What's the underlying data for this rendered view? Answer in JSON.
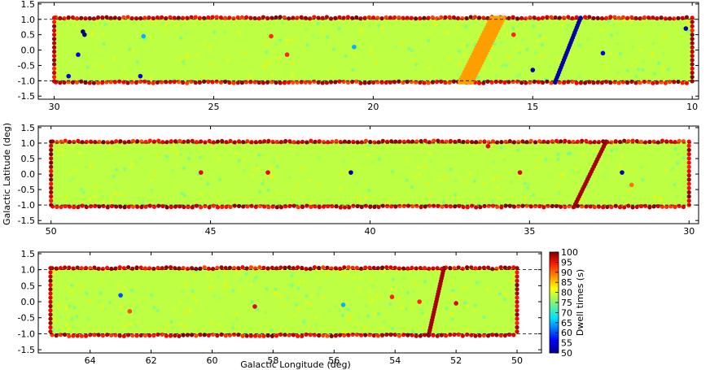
{
  "chart_data": {
    "type": "heatmap",
    "xlabel": "Galactic Longitude (deg)",
    "ylabel": "Galactic Latitude (deg)",
    "colorbar": {
      "label": "Dwell times (s)",
      "range": [
        50,
        100
      ],
      "ticks": [
        "50",
        "55",
        "60",
        "65",
        "70",
        "75",
        "80",
        "85",
        "90",
        "95",
        "100"
      ],
      "colormap": "jet"
    },
    "background_dwell_time": 78,
    "boundary_dashed_lines_b": [
      1.0,
      -1.0
    ],
    "panels": [
      {
        "name": "panel-1",
        "xlim": [
          30.5,
          9.8
        ],
        "ylim": [
          -1.6,
          1.55
        ],
        "xticks": [
          "30",
          "25",
          "20",
          "15",
          "10"
        ],
        "xtick_values": [
          30,
          25,
          20,
          15,
          10
        ],
        "yticks": [
          "1.5",
          "1.0",
          "0.5",
          "0.0",
          "-0.5",
          "-1.0",
          "-1.5"
        ],
        "ytick_values": [
          1.5,
          1.0,
          0.5,
          0.0,
          -0.5,
          -1.0,
          -1.5
        ],
        "coverage": {
          "l_min": 10.0,
          "l_max": 30.0,
          "b_min": -1.05,
          "b_max": 1.05
        },
        "stripes": [
          {
            "l_top": 16.1,
            "l_bottom": 17.1,
            "dwell": 86,
            "width_deg": 0.5
          },
          {
            "l_top": 13.5,
            "l_bottom": 14.3,
            "dwell": 52,
            "width_deg": 0.12
          }
        ],
        "points": [
          {
            "l": 29.1,
            "b": 0.6,
            "dwell": 50
          },
          {
            "l": 29.05,
            "b": 0.5,
            "dwell": 50
          },
          {
            "l": 29.25,
            "b": -0.15,
            "dwell": 55
          },
          {
            "l": 29.55,
            "b": -0.85,
            "dwell": 55
          },
          {
            "l": 27.3,
            "b": -0.85,
            "dwell": 55
          },
          {
            "l": 27.2,
            "b": 0.45,
            "dwell": 65
          },
          {
            "l": 23.2,
            "b": 0.45,
            "dwell": 92
          },
          {
            "l": 22.7,
            "b": -0.15,
            "dwell": 92
          },
          {
            "l": 20.6,
            "b": 0.1,
            "dwell": 65
          },
          {
            "l": 15.0,
            "b": -0.65,
            "dwell": 52
          },
          {
            "l": 12.8,
            "b": -0.1,
            "dwell": 55
          },
          {
            "l": 15.6,
            "b": 0.5,
            "dwell": 92
          },
          {
            "l": 10.2,
            "b": 0.7,
            "dwell": 52
          }
        ]
      },
      {
        "name": "panel-2",
        "xlim": [
          50.4,
          29.7
        ],
        "ylim": [
          -1.6,
          1.55
        ],
        "xticks": [
          "50",
          "45",
          "40",
          "35",
          "30"
        ],
        "xtick_values": [
          50,
          45,
          40,
          35,
          30
        ],
        "yticks": [
          "1.5",
          "1.0",
          "0.5",
          "0.0",
          "-0.5",
          "-1.0",
          "-1.5"
        ],
        "ytick_values": [
          1.5,
          1.0,
          0.5,
          0.0,
          -0.5,
          -1.0,
          -1.5
        ],
        "coverage": {
          "l_min": 30.0,
          "l_max": 50.0,
          "b_min": -1.05,
          "b_max": 1.05
        },
        "stripes": [
          {
            "l_top": 32.6,
            "l_bottom": 33.6,
            "dwell": 98,
            "width_deg": 0.12
          }
        ],
        "points": [
          {
            "l": 45.3,
            "b": 0.05,
            "dwell": 95
          },
          {
            "l": 43.2,
            "b": 0.05,
            "dwell": 95
          },
          {
            "l": 40.6,
            "b": 0.05,
            "dwell": 52
          },
          {
            "l": 36.3,
            "b": 0.9,
            "dwell": 95
          },
          {
            "l": 32.1,
            "b": 0.05,
            "dwell": 52
          },
          {
            "l": 35.3,
            "b": 0.05,
            "dwell": 95
          },
          {
            "l": 31.8,
            "b": -0.35,
            "dwell": 88
          }
        ]
      },
      {
        "name": "panel-3",
        "xlim": [
          65.7,
          49.2
        ],
        "ylim": [
          -1.6,
          1.55
        ],
        "xticks": [
          "64",
          "62",
          "60",
          "58",
          "56",
          "54",
          "52",
          "50"
        ],
        "xtick_values": [
          64,
          62,
          60,
          58,
          56,
          54,
          52,
          50
        ],
        "yticks": [
          "1.5",
          "1.0",
          "0.5",
          "0.0",
          "-0.5",
          "-1.0",
          "-1.5"
        ],
        "ytick_values": [
          1.5,
          1.0,
          0.5,
          0.0,
          -0.5,
          -1.0,
          -1.5
        ],
        "coverage": {
          "l_min": 50.0,
          "l_max": 65.3,
          "b_min": -1.05,
          "b_max": 1.05
        },
        "stripes": [
          {
            "l_top": 52.4,
            "l_bottom": 52.9,
            "dwell": 98,
            "width_deg": 0.1
          }
        ],
        "points": [
          {
            "l": 63.0,
            "b": 0.2,
            "dwell": 60
          },
          {
            "l": 62.7,
            "b": -0.3,
            "dwell": 90
          },
          {
            "l": 58.6,
            "b": -0.15,
            "dwell": 95
          },
          {
            "l": 54.1,
            "b": 0.15,
            "dwell": 92
          },
          {
            "l": 53.2,
            "b": 0.0,
            "dwell": 92
          },
          {
            "l": 52.0,
            "b": -0.05,
            "dwell": 95
          },
          {
            "l": 55.7,
            "b": -0.1,
            "dwell": 65
          }
        ]
      }
    ]
  }
}
